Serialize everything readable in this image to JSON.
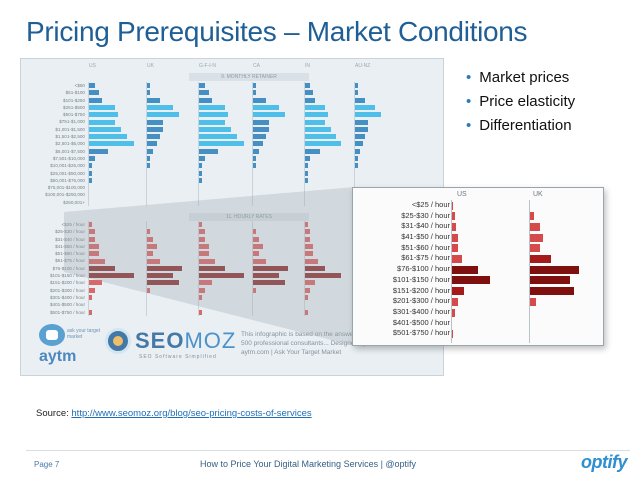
{
  "slide": {
    "title": "Pricing Prerequisites – Market Conditions",
    "bullets": [
      "Market prices",
      "Price elasticity",
      "Differentiation"
    ],
    "source_label": "Source: ",
    "source_link": "http://www.seomoz.org/blog/seo-pricing-costs-of-services",
    "page_number": "Page 7",
    "footer_title": "How to Price Your Digital Marketing Services | @optify",
    "brand": "optify"
  },
  "infographic": {
    "columns": [
      "US",
      "UK",
      "G-F-I-N",
      "CA",
      "IN",
      "AU-NZ"
    ],
    "section_monthly": "9. MONTHLY RETAINER",
    "section_hourly": "11. HOURLY RATES",
    "monthly_labels": [
      "<$50",
      "$51-$100",
      "$101-$250",
      "$251-$500",
      "$501-$750",
      "$751-$1,000",
      "$1,001-$1,500",
      "$1,501-$2,500",
      "$2,501-$5,000",
      "$5,001-$7,500",
      "$7,501-$10,000",
      "$10,001-$25,000",
      "$25,001-$50,000",
      "$50,001-$75,000",
      "$75,001-$100,000",
      "$100,001-$250,000",
      "$250,001+"
    ],
    "hourly_labels": [
      "<$25 / hour",
      "$25-$30 / hour",
      "$31-$40 / hour",
      "$41-$50 / hour",
      "$51-$60 / hour",
      "$61-$75 / hour",
      "$76-$100 / hour",
      "$101-$150 / hour",
      "$151-$200 / hour",
      "$201-$300 / hour",
      "$301-$400 / hour",
      "$401-$500 / hour",
      "$501-$750 / hour"
    ],
    "monthly_values": {
      "US": [
        2,
        3,
        4,
        8,
        9,
        8,
        10,
        12,
        14,
        6,
        2,
        1,
        1,
        1,
        0,
        0,
        0
      ],
      "UK": [
        1,
        1,
        4,
        8,
        10,
        5,
        5,
        4,
        3,
        2,
        1,
        1,
        0,
        0,
        0,
        0,
        0
      ]
    },
    "hourly_values": {
      "US": [
        1,
        2,
        2,
        3,
        3,
        5,
        8,
        14,
        4,
        2,
        1,
        0,
        1
      ],
      "UK": [
        0,
        1,
        2,
        3,
        2,
        4,
        11,
        8,
        10,
        1,
        0,
        0,
        0
      ]
    },
    "aytm_text": "aytm",
    "aytm_sub": "ask your target market",
    "seomoz_text": "SEO",
    "seomoz_text2": "MOZ",
    "seomoz_sub": "SEO Software Simplified",
    "foot_text": "This infographic is based on the answers from over 500 professional consultants... Designed by aytm.com | Ask Your Target Market"
  },
  "zoom": {
    "columns": [
      "US",
      "UK"
    ],
    "labels": [
      "<$25 / hour",
      "$25-$30 / hour",
      "$31-$40 / hour",
      "$41-$50 / hour",
      "$51-$60 / hour",
      "$61-$75 / hour",
      "$76-$100 / hour",
      "$101-$150 / hour",
      "$151-$200 / hour",
      "$201-$300 / hour",
      "$301-$400 / hour",
      "$401-$500 / hour",
      "$501-$750 / hour"
    ],
    "us_values": [
      1,
      2,
      3,
      4,
      4,
      7,
      18,
      26,
      8,
      4,
      2,
      0,
      1
    ],
    "uk_values": [
      0,
      2,
      5,
      7,
      5,
      11,
      26,
      21,
      23,
      3,
      0,
      0,
      0
    ]
  },
  "colors": {
    "title": "#1f5f95",
    "bar_blue": "#2079b8",
    "bar_blue_light": "#2ab4e4",
    "bar_red": "#a51a1a",
    "bar_red_dark": "#7e1010",
    "bar_red_light": "#d54a4a"
  }
}
